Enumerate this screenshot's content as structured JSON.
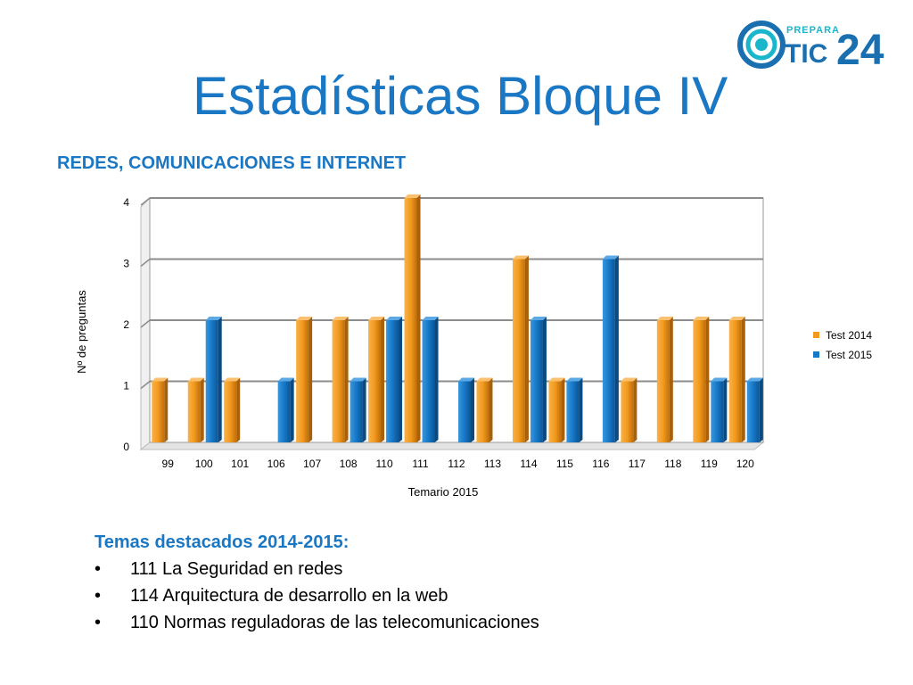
{
  "slide": {
    "title": "Estadísticas Bloque IV",
    "subtitle": "REDES, COMUNICACIONES E INTERNET"
  },
  "logo": {
    "small_text": "PREPARA",
    "brand_text": "TIC",
    "number_text": "24",
    "icon": "target-circle-icon",
    "colors": {
      "blue": "#1a6fb0",
      "teal": "#19b6cc"
    }
  },
  "chart_data": {
    "type": "bar",
    "xlabel": "Temario 2015",
    "ylabel": "Nº de preguntas",
    "ylim": [
      0,
      4
    ],
    "yticks": [
      "0",
      "1",
      "2",
      "3",
      "4"
    ],
    "grid": true,
    "legend_position": "right",
    "categories": [
      "99",
      "100",
      "101",
      "106",
      "107",
      "108",
      "110",
      "111",
      "112",
      "113",
      "114",
      "115",
      "116",
      "117",
      "118",
      "119",
      "120"
    ],
    "series": [
      {
        "name": "Test 2014",
        "color": "#f39a1e",
        "values": [
          1,
          1,
          1,
          0,
          2,
          2,
          2,
          4,
          0,
          1,
          3,
          1,
          0,
          1,
          2,
          2,
          2
        ]
      },
      {
        "name": "Test 2015",
        "color": "#1678c8",
        "values": [
          0,
          2,
          0,
          1,
          0,
          1,
          2,
          2,
          1,
          0,
          2,
          1,
          3,
          0,
          0,
          1,
          1
        ]
      }
    ]
  },
  "highlights": {
    "title": "Temas destacados 2014-2015:",
    "bullet": "•",
    "items": [
      "111 La Seguridad en redes",
      "114 Arquitectura de desarrollo en la web",
      "110 Normas reguladoras de las telecomunicaciones"
    ]
  }
}
